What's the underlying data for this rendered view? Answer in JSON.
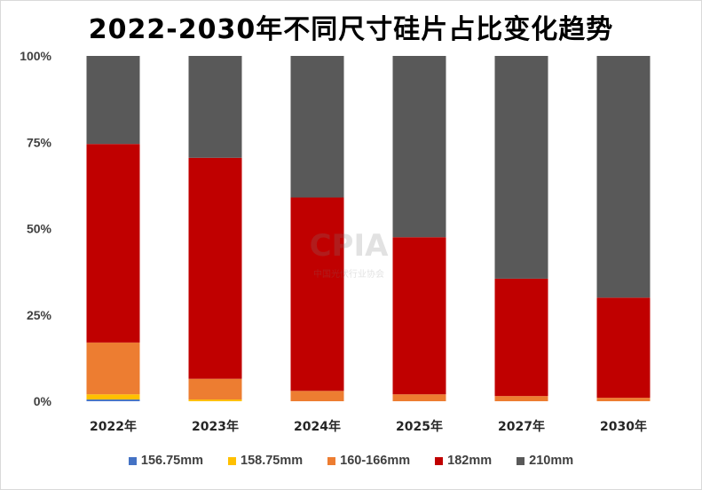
{
  "chart_data": {
    "type": "bar",
    "stacked": true,
    "title": "2022-2030年不同尺寸硅片占比变化趋势",
    "categories": [
      "2022年",
      "2023年",
      "2024年",
      "2025年",
      "2027年",
      "2030年"
    ],
    "series": [
      {
        "name": "156.75mm",
        "color": "#4472c4",
        "values": [
          0.5,
          0.0,
          0.0,
          0.0,
          0.0,
          0.0
        ]
      },
      {
        "name": "158.75mm",
        "color": "#ffc000",
        "values": [
          1.5,
          0.5,
          0.0,
          0.0,
          0.0,
          0.0
        ]
      },
      {
        "name": "160-166mm",
        "color": "#ed7d31",
        "values": [
          15.0,
          6.0,
          3.0,
          2.0,
          1.5,
          1.0
        ]
      },
      {
        "name": "182mm",
        "color": "#c00000",
        "values": [
          57.5,
          64.0,
          56.0,
          45.5,
          34.0,
          29.0
        ]
      },
      {
        "name": "210mm",
        "color": "#595959",
        "values": [
          25.5,
          29.5,
          41.0,
          52.5,
          64.5,
          70.0
        ]
      }
    ],
    "y_ticks": [
      "0%",
      "25%",
      "50%",
      "75%",
      "100%"
    ],
    "ylim": [
      0,
      100
    ],
    "grid": false,
    "legend_position": "bottom"
  },
  "watermark": {
    "logo": "CPIA",
    "org": "中国光伏行业协会"
  }
}
